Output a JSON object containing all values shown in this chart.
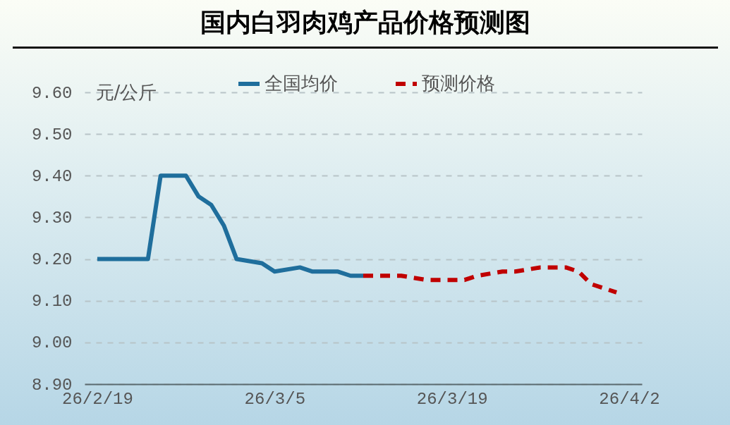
{
  "chart_data": {
    "type": "line",
    "title": "国内白羽肉鸡产品价格预测图",
    "ylabel": "元/公斤",
    "xlim": [
      "--02-18",
      "--04-03"
    ],
    "xticks": [
      {
        "value": "--02-19",
        "label": "26/2/19"
      },
      {
        "value": "--03-05",
        "label": "26/3/5"
      },
      {
        "value": "--03-19",
        "label": "26/3/19"
      },
      {
        "value": "--04-02",
        "label": "26/4/2"
      }
    ],
    "ylim": [
      8.9,
      9.6
    ],
    "yticks": [
      {
        "value": 8.9,
        "label": "8.90"
      },
      {
        "value": 9.0,
        "label": "9.00"
      },
      {
        "value": 9.1,
        "label": "9.10"
      },
      {
        "value": 9.2,
        "label": "9.20"
      },
      {
        "value": 9.3,
        "label": "9.30"
      },
      {
        "value": 9.4,
        "label": "9.40"
      },
      {
        "value": 9.5,
        "label": "9.50"
      },
      {
        "value": 9.6,
        "label": "9.60"
      }
    ],
    "grid": "y",
    "legend": "top",
    "marker": "none",
    "series": [
      {
        "name": "全国均价",
        "color": "#1f6e9c",
        "line_style": "solid",
        "x": [
          "--02-19",
          "--02-23",
          "--02-24",
          "--02-26",
          "--02-27",
          "--02-28",
          "--03-01",
          "--03-02",
          "--03-04",
          "--03-05",
          "--03-07",
          "--03-08",
          "--03-10",
          "--03-11",
          "--03-12"
        ],
        "values": [
          9.2,
          9.2,
          9.4,
          9.4,
          9.35,
          9.33,
          9.28,
          9.2,
          9.19,
          9.17,
          9.18,
          9.17,
          9.17,
          9.16,
          9.16
        ]
      },
      {
        "name": "预测价格",
        "color": "#c00000",
        "line_style": "dashed",
        "x": [
          "--03-12",
          "--03-15",
          "--03-17",
          "--03-20",
          "--03-21",
          "--03-23",
          "--03-24",
          "--03-26",
          "--03-28",
          "--03-29",
          "--03-30",
          "--04-01"
        ],
        "values": [
          9.16,
          9.16,
          9.15,
          9.15,
          9.16,
          9.17,
          9.17,
          9.18,
          9.18,
          9.17,
          9.14,
          9.12
        ]
      }
    ]
  }
}
